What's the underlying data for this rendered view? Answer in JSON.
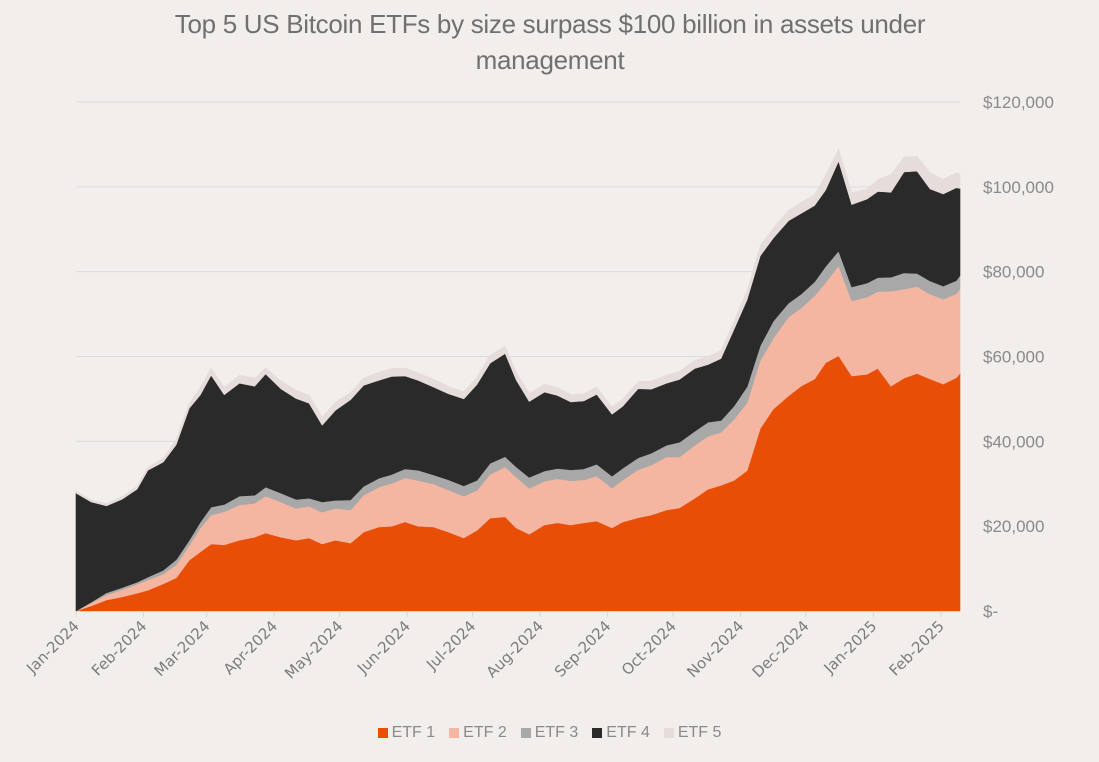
{
  "chart_data": {
    "type": "area",
    "stacked": true,
    "title": "Top 5 US Bitcoin ETFs by size surpass $100 billion in assets under management",
    "xlabel": "",
    "ylabel": "",
    "units": "USD millions",
    "ylim": [
      0,
      120000
    ],
    "yticks": [
      0,
      20000,
      40000,
      60000,
      80000,
      100000,
      120000
    ],
    "ytick_labels": [
      "$-",
      "$20,000",
      "$40,000",
      "$60,000",
      "$80,000",
      "$100,000",
      "$120,000"
    ],
    "xtick_labels": [
      "Jan-2024",
      "Feb-2024",
      "Mar-2024",
      "Apr-2024",
      "May-2024",
      "Jun-2024",
      "Jul-2024",
      "Aug-2024",
      "Sep-2024",
      "Oct-2024",
      "Nov-2024",
      "Dec-2024",
      "Jan-2025",
      "Feb-2025"
    ],
    "x_range": [
      "2024-01-01",
      "2025-02-10"
    ],
    "grid": "horizontal",
    "legend_position": "bottom",
    "x": [
      "2024-01-01",
      "2024-01-08",
      "2024-01-15",
      "2024-01-22",
      "2024-01-29",
      "2024-02-03",
      "2024-02-10",
      "2024-02-16",
      "2024-02-22",
      "2024-02-27",
      "2024-03-03",
      "2024-03-09",
      "2024-03-16",
      "2024-03-23",
      "2024-03-28",
      "2024-04-04",
      "2024-04-11",
      "2024-04-17",
      "2024-04-23",
      "2024-04-29",
      "2024-05-06",
      "2024-05-12",
      "2024-05-19",
      "2024-05-25",
      "2024-05-31",
      "2024-06-06",
      "2024-06-13",
      "2024-06-20",
      "2024-06-27",
      "2024-07-03",
      "2024-07-09",
      "2024-07-16",
      "2024-07-21",
      "2024-07-27",
      "2024-08-03",
      "2024-08-09",
      "2024-08-15",
      "2024-08-21",
      "2024-08-27",
      "2024-09-03",
      "2024-09-08",
      "2024-09-15",
      "2024-09-21",
      "2024-09-28",
      "2024-10-04",
      "2024-10-11",
      "2024-10-17",
      "2024-10-23",
      "2024-10-29",
      "2024-11-04",
      "2024-11-10",
      "2024-11-16",
      "2024-11-23",
      "2024-11-29",
      "2024-12-05",
      "2024-12-10",
      "2024-12-16",
      "2024-12-22",
      "2024-12-29",
      "2025-01-03",
      "2025-01-09",
      "2025-01-15",
      "2025-01-21",
      "2025-01-27",
      "2025-02-02",
      "2025-02-08",
      "2025-02-14"
    ],
    "series": [
      {
        "name": "ETF 1",
        "color": "#e94e07",
        "values": [
          0,
          1200,
          2600,
          3300,
          4200,
          4900,
          6400,
          7800,
          12000,
          13900,
          15800,
          15600,
          16700,
          17400,
          18400,
          17400,
          16700,
          17200,
          15800,
          16700,
          16000,
          18600,
          19800,
          20000,
          21000,
          20000,
          19800,
          18600,
          17200,
          19000,
          21900,
          22200,
          19600,
          18100,
          20300,
          20800,
          20300,
          20800,
          21200,
          19600,
          21000,
          22000,
          22600,
          23800,
          24300,
          26600,
          28700,
          29600,
          30800,
          33100,
          43000,
          47600,
          50700,
          53100,
          54700,
          58500,
          60200,
          55400,
          55800,
          57200,
          53000,
          54900,
          56000,
          54700,
          53500,
          55000,
          56000
        ]
      },
      {
        "name": "ETF 2",
        "color": "#f4b6a1",
        "values": [
          0,
          700,
          1200,
          1700,
          2100,
          2400,
          2300,
          3100,
          3500,
          5600,
          6800,
          7800,
          8300,
          8000,
          8700,
          8300,
          7500,
          7500,
          7500,
          7500,
          7800,
          8700,
          9400,
          10100,
          10400,
          10800,
          10200,
          9900,
          9900,
          9400,
          10300,
          11800,
          12000,
          10800,
          10300,
          10400,
          10400,
          10100,
          10600,
          9400,
          9900,
          11300,
          11800,
          12500,
          12000,
          12500,
          12500,
          12500,
          14400,
          16000,
          16000,
          16700,
          18600,
          18400,
          19600,
          18900,
          21200,
          17700,
          18200,
          18100,
          22400,
          21000,
          20500,
          20000,
          20000,
          19800,
          20000
        ]
      },
      {
        "name": "ETF 3",
        "color": "#a8a8a8",
        "values": [
          0,
          200,
          500,
          500,
          500,
          700,
          900,
          1200,
          1200,
          1400,
          1900,
          1700,
          2100,
          1900,
          2100,
          2100,
          2100,
          1900,
          2400,
          1900,
          2400,
          2100,
          2100,
          2100,
          2100,
          2400,
          2100,
          2400,
          2400,
          2400,
          2600,
          2400,
          2400,
          2600,
          2400,
          2400,
          2600,
          2600,
          2800,
          2800,
          2800,
          2800,
          2800,
          2800,
          3500,
          3300,
          3300,
          2800,
          3100,
          3800,
          3500,
          4000,
          3300,
          3300,
          3300,
          3800,
          3500,
          3300,
          3300,
          3300,
          3300,
          3800,
          3100,
          3100,
          3100,
          3100,
          3100
        ]
      },
      {
        "name": "ETF 4",
        "color": "#2a2a2a",
        "values": [
          27800,
          23600,
          20500,
          20800,
          21900,
          25200,
          25500,
          27100,
          31100,
          30000,
          31100,
          25900,
          26600,
          25700,
          26700,
          24600,
          23800,
          22400,
          18100,
          21200,
          23600,
          23800,
          23100,
          23100,
          21900,
          21200,
          20700,
          20300,
          20500,
          22600,
          23600,
          24300,
          20500,
          17900,
          18600,
          17200,
          16000,
          16000,
          16500,
          14600,
          14600,
          16300,
          15100,
          14600,
          14800,
          14800,
          13600,
          14600,
          18100,
          20500,
          21200,
          19600,
          19400,
          19000,
          18000,
          18000,
          21200,
          19400,
          19800,
          20300,
          20000,
          23800,
          24100,
          21700,
          21700,
          21900,
          20500
        ]
      },
      {
        "name": "ETF 5",
        "color": "#e6dcda",
        "values": [
          500,
          500,
          500,
          700,
          700,
          700,
          900,
          1200,
          1200,
          1700,
          1700,
          1700,
          1900,
          1900,
          1400,
          1900,
          1900,
          1900,
          1900,
          1900,
          1700,
          1700,
          1900,
          1900,
          1900,
          1700,
          1900,
          1700,
          1700,
          1700,
          1900,
          1700,
          1900,
          1900,
          1900,
          1900,
          1700,
          1700,
          1700,
          1700,
          1700,
          1700,
          1900,
          1900,
          1900,
          1900,
          1900,
          1900,
          1900,
          2100,
          2400,
          2400,
          2400,
          2600,
          2600,
          3500,
          2800,
          2800,
          2400,
          2800,
          4200,
          3500,
          3500,
          3800,
          3500,
          3500,
          3500
        ]
      }
    ]
  },
  "legend": [
    {
      "label": "ETF 1",
      "color": "#e94e07"
    },
    {
      "label": "ETF 2",
      "color": "#f4b6a1"
    },
    {
      "label": "ETF 3",
      "color": "#a8a8a8"
    },
    {
      "label": "ETF 4",
      "color": "#2a2a2a"
    },
    {
      "label": "ETF 5",
      "color": "#e6dcda"
    }
  ]
}
